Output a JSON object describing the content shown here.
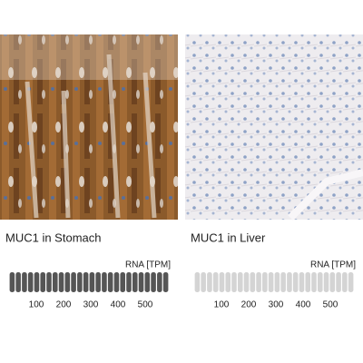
{
  "panels": [
    {
      "title": "MUC1 in Stomach",
      "scale_label": "RNA [TPM]",
      "ticks": [
        100,
        200,
        300,
        400,
        500
      ],
      "bar_color": "#555555"
    },
    {
      "title": "MUC1 in Liver",
      "scale_label": "RNA [TPM]",
      "ticks": [
        100,
        200,
        300,
        400,
        500
      ],
      "bar_color": "#d4d4d4"
    }
  ]
}
